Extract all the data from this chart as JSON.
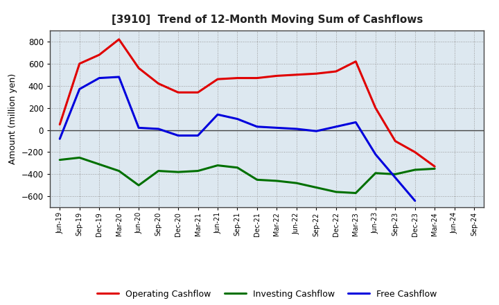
{
  "title": "[3910]  Trend of 12-Month Moving Sum of Cashflows",
  "ylabel": "Amount (million yen)",
  "x_labels": [
    "Jun-19",
    "Sep-19",
    "Dec-19",
    "Mar-20",
    "Jun-20",
    "Sep-20",
    "Dec-20",
    "Mar-21",
    "Jun-21",
    "Sep-21",
    "Dec-21",
    "Mar-22",
    "Jun-22",
    "Sep-22",
    "Dec-22",
    "Mar-23",
    "Jun-23",
    "Sep-23",
    "Dec-23",
    "Mar-24",
    "Jun-24",
    "Sep-24"
  ],
  "operating": [
    50,
    600,
    680,
    820,
    560,
    420,
    340,
    340,
    460,
    470,
    470,
    490,
    500,
    510,
    530,
    620,
    200,
    -100,
    -200,
    -330,
    null,
    null
  ],
  "investing": [
    -270,
    -250,
    -310,
    -370,
    -500,
    -370,
    -380,
    -370,
    -320,
    -340,
    -450,
    -460,
    -480,
    -520,
    -560,
    -570,
    -390,
    -400,
    -360,
    -350,
    null,
    null
  ],
  "free": [
    -80,
    370,
    470,
    480,
    20,
    10,
    -50,
    -50,
    140,
    100,
    30,
    20,
    10,
    -10,
    30,
    70,
    -220,
    -430,
    -640,
    null,
    null,
    null
  ],
  "operating_color": "#e00000",
  "investing_color": "#007000",
  "free_color": "#0000dd",
  "plot_bg_color": "#dde8f0",
  "fig_bg_color": "#ffffff",
  "grid_color": "#999999",
  "ylim": [
    -700,
    900
  ],
  "yticks": [
    -600,
    -400,
    -200,
    0,
    200,
    400,
    600,
    800
  ],
  "legend_labels": [
    "Operating Cashflow",
    "Investing Cashflow",
    "Free Cashflow"
  ]
}
